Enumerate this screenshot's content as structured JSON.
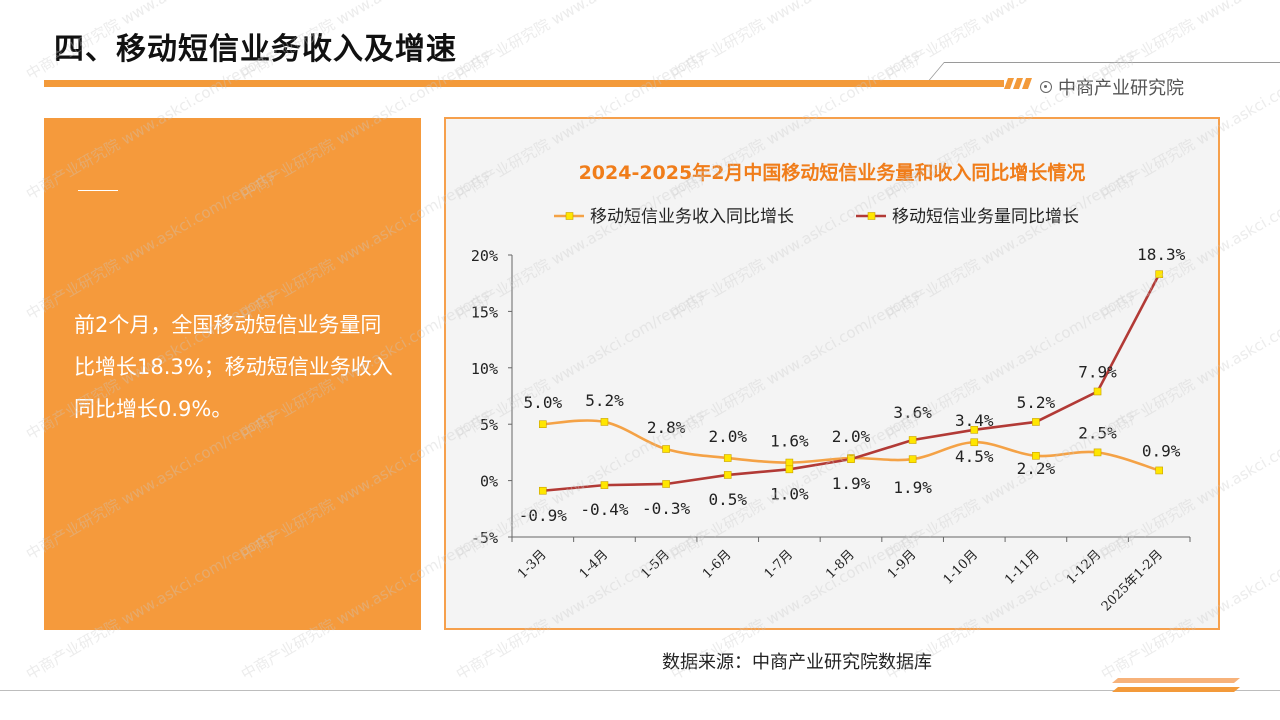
{
  "page": {
    "title": "四、移动短信业务收入及增速",
    "brand": "中商产业研究院",
    "source": "数据来源：中商产业研究院数据库",
    "watermark": "中商产业研究院 www.askci.com/reports"
  },
  "summary": {
    "text": "前2个月，全国移动短信业务量同比增长18.3%；移动短信业务收入同比增长0.9%。"
  },
  "colors": {
    "accent": "#f39a3a",
    "series_revenue": "#f4a246",
    "series_volume": "#b23a36",
    "marker_fill": "#ffe600"
  },
  "chart_data": {
    "type": "line",
    "title": "2024-2025年2月中国移动短信业务量和收入同比增长情况",
    "categories": [
      "1-3月",
      "1-4月",
      "1-5月",
      "1-6月",
      "1-7月",
      "1-8月",
      "1-9月",
      "1-10月",
      "1-11月",
      "1-12月",
      "2025年1-2月"
    ],
    "series": [
      {
        "name": "移动短信业务收入同比增长",
        "values": [
          5.0,
          5.2,
          2.8,
          2.0,
          1.6,
          2.0,
          1.9,
          3.4,
          2.2,
          2.5,
          0.9
        ],
        "labels": [
          "5.0%",
          "5.2%",
          "2.8%",
          "2.0%",
          "1.6%",
          "2.0%",
          "1.9%",
          "3.4%",
          "2.2%",
          "2.5%",
          "0.9%"
        ],
        "smooth": true
      },
      {
        "name": "移动短信业务量同比增长",
        "values": [
          -0.9,
          -0.4,
          -0.3,
          0.5,
          1.0,
          1.9,
          3.6,
          4.5,
          5.2,
          7.9,
          18.3
        ],
        "labels": [
          "-0.9%",
          "-0.4%",
          "-0.3%",
          "0.5%",
          "1.0%",
          "1.9%",
          "3.6%",
          "4.5%",
          "5.2%",
          "7.9%",
          "18.3%"
        ],
        "smooth": false
      }
    ],
    "ylim": [
      -5,
      20
    ],
    "yticks": [
      -5,
      0,
      5,
      10,
      15,
      20
    ],
    "ytick_labels": [
      "-5%",
      "0%",
      "5%",
      "10%",
      "15%",
      "20%"
    ],
    "xlabel": "",
    "ylabel": "",
    "legend": "top-center",
    "grid": false
  }
}
